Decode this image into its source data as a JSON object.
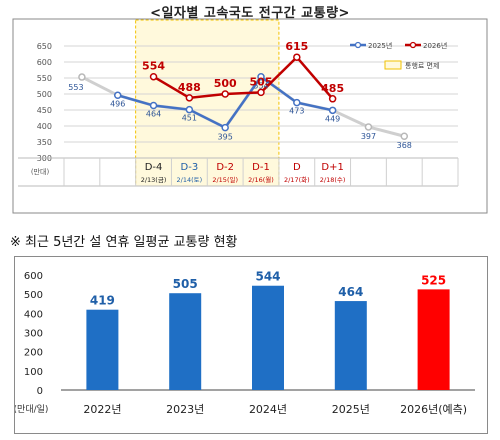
{
  "page_title": "<일자별 고속국도 전구간 교통량>",
  "section_title": "※ 최근 5년간 설 연휴 일평균 교통량 현황",
  "colors": {
    "s2025": "#4472c4",
    "s2026": "#c00000",
    "s2025_label": "#2e5597",
    "highlight_fill": "#fff9dc",
    "highlight_border": "#f2c200",
    "bar_default": "#1f6fc5",
    "bar_highlight": "#ff0000",
    "bar_label_default": "#1f5fa8",
    "bar_label_highlight": "#ff0000"
  },
  "chart_data": [
    {
      "type": "line",
      "ylim": [
        300,
        650
      ],
      "yticks": [
        "650",
        "600",
        "550",
        "500",
        "450",
        "400",
        "350",
        "300"
      ],
      "unit_label": "(만대)",
      "grid": true,
      "legend": [
        "2025년",
        "2026년",
        "통행료 면제"
      ],
      "highlight_columns": [
        2,
        5
      ],
      "columns": [
        {
          "day": "",
          "date": ""
        },
        {
          "day": "",
          "date": ""
        },
        {
          "day": "D-4",
          "date": "2/13(금)"
        },
        {
          "day": "D-3",
          "date": "2/14(토)"
        },
        {
          "day": "D-2",
          "date": "2/15(일)"
        },
        {
          "day": "D-1",
          "date": "2/16(월)"
        },
        {
          "day": "D",
          "date": "2/17(화)"
        },
        {
          "day": "D+1",
          "date": "2/18(수)"
        },
        {
          "day": "",
          "date": ""
        },
        {
          "day": "",
          "date": ""
        },
        {
          "day": "",
          "date": ""
        }
      ],
      "series": [
        {
          "name": "2025년",
          "values": [
            553,
            496,
            464,
            451,
            395,
            554,
            473,
            449,
            397,
            368
          ],
          "labels": [
            "553",
            "496",
            "464",
            "451",
            "395",
            "554",
            "473",
            "449",
            "397",
            "368"
          ]
        },
        {
          "name": "2026년",
          "values": [
            554,
            488,
            500,
            505,
            615,
            485
          ],
          "labels": [
            "554",
            "488",
            "500",
            "505",
            "615",
            "485"
          ]
        }
      ]
    },
    {
      "type": "bar",
      "categories": [
        "2022년",
        "2023년",
        "2024년",
        "2025년",
        "2026년(예측)"
      ],
      "values": [
        419,
        505,
        544,
        464,
        525
      ],
      "labels": [
        "419",
        "505",
        "544",
        "464",
        "525"
      ],
      "ylim": [
        0,
        600
      ],
      "yticks": [
        "0",
        "100",
        "200",
        "300",
        "400",
        "500",
        "600"
      ],
      "unit_label": "(만대/일)",
      "highlight_index": 4
    }
  ]
}
